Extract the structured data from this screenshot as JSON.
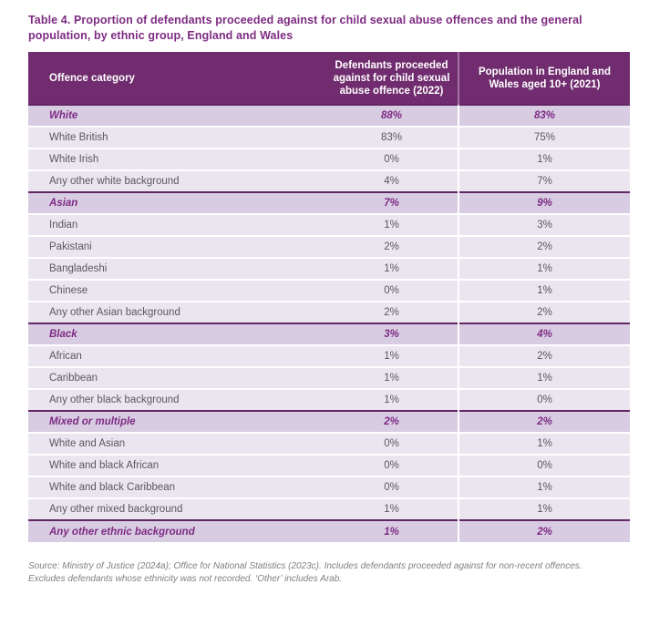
{
  "title": "Table 4. Proportion of defendants proceeded against for child sexual abuse offences and the general population, by ethnic group, England and Wales",
  "table": {
    "columns": [
      "Offence category",
      "Defendants proceeded against for child sexual abuse offence (2022)",
      "Population in England and Wales aged 10+ (2021)"
    ],
    "rows": [
      {
        "label": "White",
        "group": true,
        "defendants": "88%",
        "population": "83%"
      },
      {
        "label": "White British",
        "group": false,
        "defendants": "83%",
        "population": "75%"
      },
      {
        "label": "White Irish",
        "group": false,
        "defendants": "0%",
        "population": "1%"
      },
      {
        "label": "Any other white background",
        "group": false,
        "defendants": "4%",
        "population": "7%"
      },
      {
        "label": "Asian",
        "group": true,
        "defendants": "7%",
        "population": "9%"
      },
      {
        "label": "Indian",
        "group": false,
        "defendants": "1%",
        "population": "3%"
      },
      {
        "label": "Pakistani",
        "group": false,
        "defendants": "2%",
        "population": "2%"
      },
      {
        "label": "Bangladeshi",
        "group": false,
        "defendants": "1%",
        "population": "1%"
      },
      {
        "label": "Chinese",
        "group": false,
        "defendants": "0%",
        "population": "1%"
      },
      {
        "label": "Any other Asian background",
        "group": false,
        "defendants": "2%",
        "population": "2%"
      },
      {
        "label": "Black",
        "group": true,
        "defendants": "3%",
        "population": "4%"
      },
      {
        "label": "African",
        "group": false,
        "defendants": "1%",
        "population": "2%"
      },
      {
        "label": "Caribbean",
        "group": false,
        "defendants": "1%",
        "population": "1%"
      },
      {
        "label": "Any other black background",
        "group": false,
        "defendants": "1%",
        "population": "0%"
      },
      {
        "label": "Mixed or multiple",
        "group": true,
        "defendants": "2%",
        "population": "2%"
      },
      {
        "label": "White and Asian",
        "group": false,
        "defendants": "0%",
        "population": "1%"
      },
      {
        "label": "White and black African",
        "group": false,
        "defendants": "0%",
        "population": "0%"
      },
      {
        "label": "White and black Caribbean",
        "group": false,
        "defendants": "0%",
        "population": "1%"
      },
      {
        "label": "Any other mixed background",
        "group": false,
        "defendants": "1%",
        "population": "1%"
      },
      {
        "label": "Any other ethnic background",
        "group": true,
        "defendants": "1%",
        "population": "2%"
      }
    ]
  },
  "footnote": {
    "lines": [
      "Source: Ministry of Justice (2024a); Office for National Statistics (2023c). Includes defendants proceeded against for non-recent offences.",
      "Excludes defendants whose ethnicity was not recorded. ‘Other’ includes Arab."
    ]
  },
  "colors": {
    "header_background": "#702c6e",
    "group_row_background": "#d8cce3",
    "data_row_background": "#ebe5f0",
    "accent_text": "#7d2b82",
    "body_text": "#58595b",
    "group_border": "#622663",
    "footnote_text": "#7e8083"
  }
}
